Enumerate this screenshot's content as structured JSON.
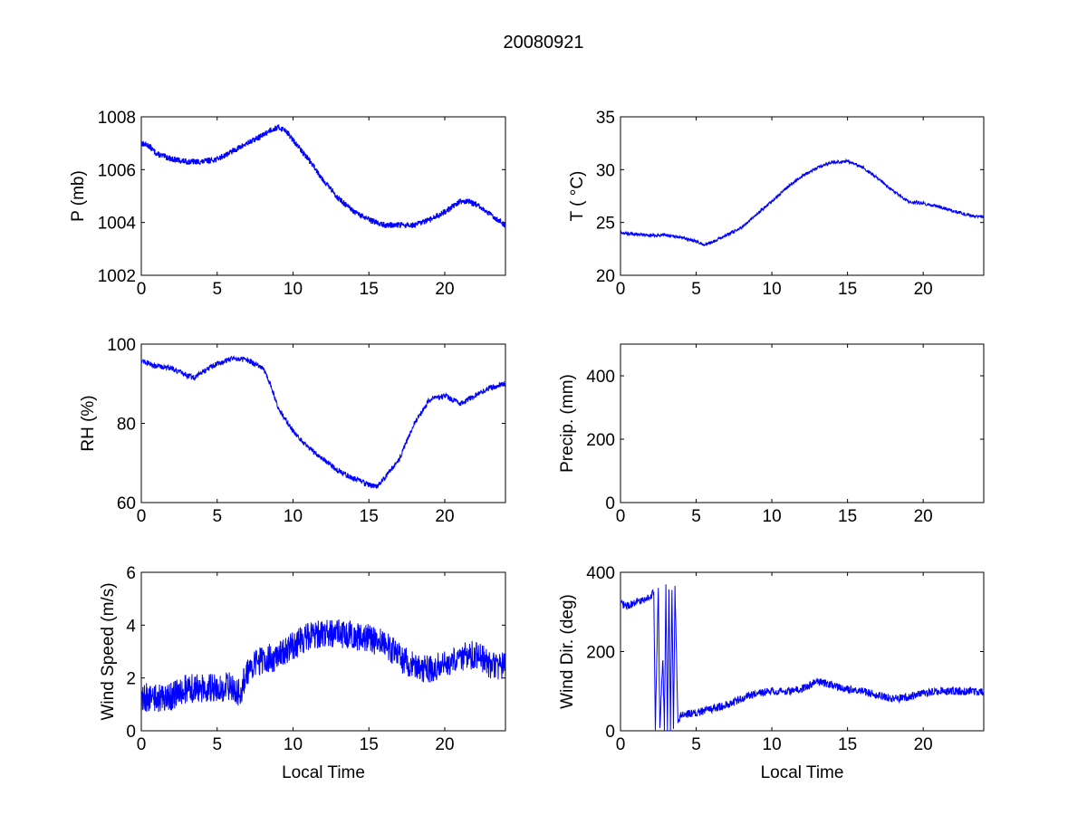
{
  "figure_title": "20080921",
  "line_color": "#0000ff",
  "chart_data": [
    {
      "id": "pressure",
      "type": "line",
      "ylabel": "P (mb)",
      "xlabel": "",
      "xlim": [
        0,
        24
      ],
      "ylim": [
        1002,
        1008
      ],
      "xticks": [
        0,
        5,
        10,
        15,
        20
      ],
      "yticks": [
        1002,
        1004,
        1006,
        1008
      ],
      "x": [
        0,
        0.5,
        1,
        2,
        3,
        4,
        5,
        6,
        7,
        8,
        8.5,
        9,
        9.5,
        10,
        11,
        12,
        13,
        14,
        15,
        16,
        17,
        18,
        19,
        20,
        21,
        21.5,
        22,
        23,
        24
      ],
      "y": [
        1007,
        1006.9,
        1006.6,
        1006.4,
        1006.3,
        1006.3,
        1006.4,
        1006.7,
        1007.0,
        1007.3,
        1007.5,
        1007.6,
        1007.5,
        1007.1,
        1006.4,
        1005.6,
        1004.9,
        1004.4,
        1004.1,
        1003.9,
        1003.9,
        1003.9,
        1004.1,
        1004.4,
        1004.8,
        1004.8,
        1004.7,
        1004.3,
        1003.9
      ],
      "noise": 0.1,
      "stepped": true
    },
    {
      "id": "temperature",
      "type": "line",
      "ylabel": "T ( °C)",
      "xlabel": "",
      "xlim": [
        0,
        24
      ],
      "ylim": [
        20,
        35
      ],
      "xticks": [
        0,
        5,
        10,
        15,
        20
      ],
      "yticks": [
        20,
        25,
        30,
        35
      ],
      "x": [
        0,
        1,
        2,
        3,
        4,
        5,
        5.5,
        6,
        7,
        8,
        9,
        10,
        11,
        12,
        13,
        14,
        15,
        16,
        17,
        18,
        19,
        20,
        21,
        22,
        23,
        24
      ],
      "y": [
        24,
        23.9,
        23.8,
        23.8,
        23.6,
        23.2,
        22.9,
        23.1,
        23.8,
        24.5,
        25.8,
        27.0,
        28.3,
        29.4,
        30.2,
        30.7,
        30.8,
        30.2,
        29.2,
        28.0,
        27.0,
        26.8,
        26.5,
        26.1,
        25.7,
        25.5
      ],
      "noise": 0.15,
      "stepped": false
    },
    {
      "id": "humidity",
      "type": "line",
      "ylabel": "RH (%)",
      "xlabel": "",
      "xlim": [
        0,
        24
      ],
      "ylim": [
        60,
        100
      ],
      "xticks": [
        0,
        5,
        10,
        15,
        20
      ],
      "yticks": [
        60,
        80,
        100
      ],
      "x": [
        0,
        0.5,
        1,
        2,
        3,
        3.5,
        4,
        5,
        6,
        7,
        8,
        8.5,
        9,
        10,
        11,
        12,
        13,
        14,
        15,
        15.5,
        16,
        17,
        18,
        19,
        20,
        21,
        22,
        23,
        24
      ],
      "y": [
        96,
        95,
        94.5,
        94,
        92,
        91.5,
        93,
        95,
        96.5,
        96,
        94,
        90,
        84,
        78,
        74,
        71,
        68,
        66,
        64.5,
        64,
        66,
        71,
        80,
        86,
        87,
        85,
        87,
        89,
        90
      ],
      "noise": 0.7,
      "stepped": false
    },
    {
      "id": "precipitation",
      "type": "line",
      "ylabel": "Precip. (mm)",
      "xlabel": "",
      "xlim": [
        0,
        24
      ],
      "ylim": [
        0,
        500
      ],
      "xticks": [
        0,
        5,
        10,
        15,
        20
      ],
      "yticks": [
        0,
        200,
        400
      ],
      "x": [],
      "y": [],
      "noise": 0,
      "stepped": false
    },
    {
      "id": "wind-speed",
      "type": "line",
      "ylabel": "Wind Speed (m/s)",
      "xlabel": "Local Time",
      "xlim": [
        0,
        24
      ],
      "ylim": [
        0,
        6
      ],
      "xticks": [
        0,
        5,
        10,
        15,
        20
      ],
      "yticks": [
        0,
        2,
        4,
        6
      ],
      "x": [
        0,
        1,
        2,
        3,
        4,
        5,
        6,
        6.5,
        7,
        8,
        9,
        10,
        11,
        12,
        13,
        14,
        15,
        16,
        17,
        18,
        19,
        20,
        21,
        22,
        23,
        24
      ],
      "y": [
        1.3,
        1.2,
        1.3,
        1.6,
        1.6,
        1.6,
        1.7,
        1.4,
        2.3,
        2.7,
        2.8,
        3.2,
        3.6,
        3.7,
        3.7,
        3.6,
        3.5,
        3.3,
        2.8,
        2.4,
        2.3,
        2.6,
        2.8,
        2.9,
        2.5,
        2.4
      ],
      "noise": 0.55,
      "stepped": false
    },
    {
      "id": "wind-direction",
      "type": "line",
      "ylabel": "Wind Dir. (deg)",
      "xlabel": "Local Time",
      "xlim": [
        0,
        24
      ],
      "ylim": [
        0,
        400
      ],
      "xticks": [
        0,
        5,
        10,
        15,
        20
      ],
      "yticks": [
        0,
        200,
        400
      ],
      "x": [
        0,
        0.5,
        1,
        1.5,
        2,
        2.2,
        2.3,
        2.5,
        2.6,
        2.8,
        2.9,
        3.0,
        3.1,
        3.2,
        3.3,
        3.4,
        3.5,
        3.6,
        3.8,
        4,
        5,
        6,
        7,
        8,
        9,
        10,
        11,
        12,
        13,
        14,
        15,
        16,
        17,
        18,
        19,
        20,
        21,
        22,
        23,
        24
      ],
      "y": [
        320,
        315,
        325,
        330,
        340,
        350,
        5,
        360,
        10,
        180,
        5,
        360,
        0,
        360,
        5,
        355,
        0,
        360,
        20,
        40,
        45,
        55,
        65,
        80,
        95,
        100,
        100,
        105,
        125,
        115,
        105,
        100,
        90,
        80,
        85,
        95,
        100,
        100,
        100,
        98
      ],
      "noise": 10,
      "stepped": false
    }
  ]
}
